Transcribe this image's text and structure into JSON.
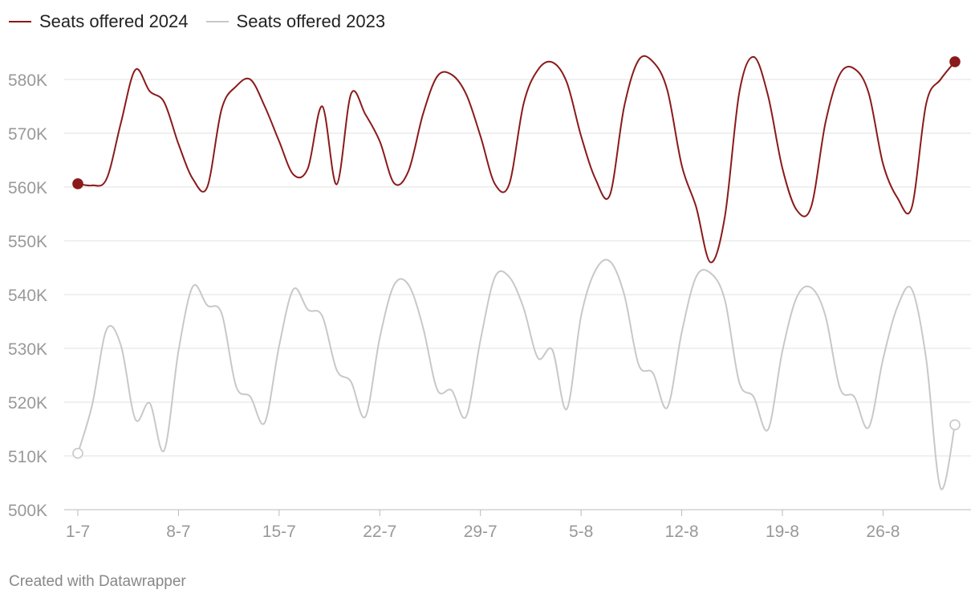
{
  "chart_data": {
    "type": "line",
    "title": "",
    "xlabel": "",
    "ylabel": "",
    "x_start": "2024-07-01",
    "x_end": "2024-08-31",
    "x_ticks": [
      {
        "date": "2024-07-01",
        "label": "1-7"
      },
      {
        "date": "2024-07-08",
        "label": "8-7"
      },
      {
        "date": "2024-07-15",
        "label": "15-7"
      },
      {
        "date": "2024-07-22",
        "label": "22-7"
      },
      {
        "date": "2024-07-29",
        "label": "29-7"
      },
      {
        "date": "2024-08-05",
        "label": "5-8"
      },
      {
        "date": "2024-08-12",
        "label": "12-8"
      },
      {
        "date": "2024-08-19",
        "label": "19-8"
      },
      {
        "date": "2024-08-26",
        "label": "26-8"
      }
    ],
    "y_ticks": [
      {
        "value": 500000,
        "label": "500K"
      },
      {
        "value": 510000,
        "label": "510K"
      },
      {
        "value": 520000,
        "label": "520K"
      },
      {
        "value": 530000,
        "label": "530K"
      },
      {
        "value": 540000,
        "label": "540K"
      },
      {
        "value": 550000,
        "label": "550K"
      },
      {
        "value": 560000,
        "label": "560K"
      },
      {
        "value": 570000,
        "label": "570K"
      },
      {
        "value": 580000,
        "label": "580K"
      }
    ],
    "ylim": [
      500000,
      585000
    ],
    "grid": true,
    "legend_position": "top-left",
    "series": [
      {
        "name": "Seats offered 2024",
        "color": "#8b1a1a",
        "marker": "filled",
        "points": [
          [
            "2024-07-01",
            560600
          ],
          [
            "2024-07-02",
            560300
          ],
          [
            "2024-07-03",
            561500
          ],
          [
            "2024-07-04",
            572000
          ],
          [
            "2024-07-05",
            581800
          ],
          [
            "2024-07-06",
            577800
          ],
          [
            "2024-07-07",
            575800
          ],
          [
            "2024-07-08",
            568000
          ],
          [
            "2024-07-09",
            561500
          ],
          [
            "2024-07-10",
            560000
          ],
          [
            "2024-07-11",
            574500
          ],
          [
            "2024-07-12",
            578700
          ],
          [
            "2024-07-13",
            580000
          ],
          [
            "2024-07-14",
            575000
          ],
          [
            "2024-07-15",
            568500
          ],
          [
            "2024-07-16",
            562300
          ],
          [
            "2024-07-17",
            563500
          ],
          [
            "2024-07-18",
            575000
          ],
          [
            "2024-07-19",
            560500
          ],
          [
            "2024-07-20",
            577300
          ],
          [
            "2024-07-21",
            573500
          ],
          [
            "2024-07-22",
            568500
          ],
          [
            "2024-07-23",
            560700
          ],
          [
            "2024-07-24",
            563000
          ],
          [
            "2024-07-25",
            573500
          ],
          [
            "2024-07-26",
            580600
          ],
          [
            "2024-07-27",
            580900
          ],
          [
            "2024-07-28",
            577300
          ],
          [
            "2024-07-29",
            569500
          ],
          [
            "2024-07-30",
            560600
          ],
          [
            "2024-07-31",
            560500
          ],
          [
            "2024-08-01",
            575500
          ],
          [
            "2024-08-02",
            581800
          ],
          [
            "2024-08-03",
            583200
          ],
          [
            "2024-08-04",
            579500
          ],
          [
            "2024-08-05",
            569500
          ],
          [
            "2024-08-06",
            561500
          ],
          [
            "2024-08-07",
            558500
          ],
          [
            "2024-08-08",
            575000
          ],
          [
            "2024-08-09",
            583600
          ],
          [
            "2024-08-10",
            583300
          ],
          [
            "2024-08-11",
            578000
          ],
          [
            "2024-08-12",
            564000
          ],
          [
            "2024-08-13",
            556300
          ],
          [
            "2024-08-14",
            546000
          ],
          [
            "2024-08-15",
            554500
          ],
          [
            "2024-08-16",
            577500
          ],
          [
            "2024-08-17",
            584200
          ],
          [
            "2024-08-18",
            577000
          ],
          [
            "2024-08-19",
            563500
          ],
          [
            "2024-08-20",
            555700
          ],
          [
            "2024-08-21",
            556300
          ],
          [
            "2024-08-22",
            572000
          ],
          [
            "2024-08-23",
            581000
          ],
          [
            "2024-08-24",
            582000
          ],
          [
            "2024-08-25",
            577500
          ],
          [
            "2024-08-26",
            564300
          ],
          [
            "2024-08-27",
            558000
          ],
          [
            "2024-08-28",
            556200
          ],
          [
            "2024-08-29",
            575500
          ],
          [
            "2024-08-30",
            580000
          ],
          [
            "2024-08-31",
            583300
          ]
        ]
      },
      {
        "name": "Seats offered 2023",
        "color": "#c8c8c8",
        "marker": "hollow",
        "points": [
          [
            "2024-07-01",
            510500
          ],
          [
            "2024-07-02",
            519500
          ],
          [
            "2024-07-03",
            533500
          ],
          [
            "2024-07-04",
            530500
          ],
          [
            "2024-07-05",
            516800
          ],
          [
            "2024-07-06",
            519800
          ],
          [
            "2024-07-07",
            511000
          ],
          [
            "2024-07-08",
            529500
          ],
          [
            "2024-07-09",
            541500
          ],
          [
            "2024-07-10",
            538000
          ],
          [
            "2024-07-11",
            536500
          ],
          [
            "2024-07-12",
            523000
          ],
          [
            "2024-07-13",
            521000
          ],
          [
            "2024-07-14",
            516200
          ],
          [
            "2024-07-15",
            530500
          ],
          [
            "2024-07-16",
            541000
          ],
          [
            "2024-07-17",
            537200
          ],
          [
            "2024-07-18",
            536000
          ],
          [
            "2024-07-19",
            526000
          ],
          [
            "2024-07-20",
            523800
          ],
          [
            "2024-07-21",
            517300
          ],
          [
            "2024-07-22",
            532000
          ],
          [
            "2024-07-23",
            541800
          ],
          [
            "2024-07-24",
            541800
          ],
          [
            "2024-07-25",
            534000
          ],
          [
            "2024-07-26",
            522300
          ],
          [
            "2024-07-27",
            522200
          ],
          [
            "2024-07-28",
            517300
          ],
          [
            "2024-07-29",
            531500
          ],
          [
            "2024-07-30",
            543200
          ],
          [
            "2024-07-31",
            543300
          ],
          [
            "2024-08-01",
            537500
          ],
          [
            "2024-08-02",
            528200
          ],
          [
            "2024-08-03",
            529700
          ],
          [
            "2024-08-04",
            518700
          ],
          [
            "2024-08-05",
            536000
          ],
          [
            "2024-08-06",
            544500
          ],
          [
            "2024-08-07",
            546200
          ],
          [
            "2024-08-08",
            540000
          ],
          [
            "2024-08-09",
            527000
          ],
          [
            "2024-08-10",
            525400
          ],
          [
            "2024-08-11",
            519000
          ],
          [
            "2024-08-12",
            533000
          ],
          [
            "2024-08-13",
            543300
          ],
          [
            "2024-08-14",
            544000
          ],
          [
            "2024-08-15",
            539000
          ],
          [
            "2024-08-16",
            523700
          ],
          [
            "2024-08-17",
            521000
          ],
          [
            "2024-08-18",
            514900
          ],
          [
            "2024-08-19",
            529500
          ],
          [
            "2024-08-20",
            539500
          ],
          [
            "2024-08-21",
            541300
          ],
          [
            "2024-08-22",
            536000
          ],
          [
            "2024-08-23",
            522600
          ],
          [
            "2024-08-24",
            521000
          ],
          [
            "2024-08-25",
            515300
          ],
          [
            "2024-08-26",
            528000
          ],
          [
            "2024-08-27",
            537700
          ],
          [
            "2024-08-28",
            541000
          ],
          [
            "2024-08-29",
            528000
          ],
          [
            "2024-08-30",
            504000
          ],
          [
            "2024-08-31",
            515800
          ]
        ]
      }
    ]
  },
  "footer": {
    "credit": "Created with Datawrapper"
  }
}
